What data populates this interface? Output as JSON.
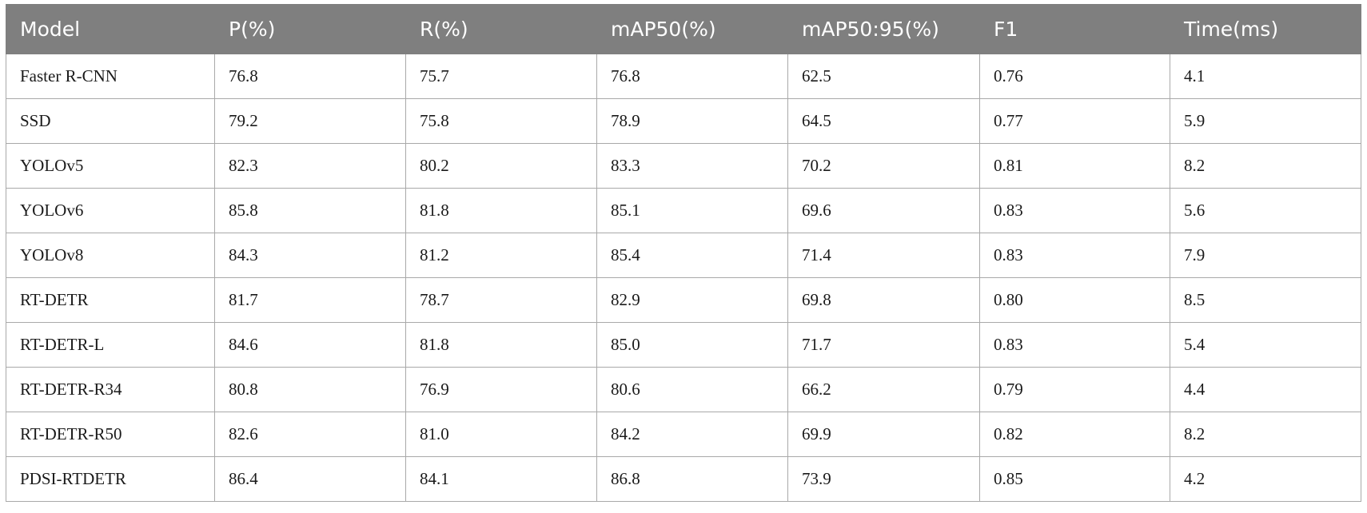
{
  "table": {
    "headers": [
      "Model",
      "P(%)",
      "R(%)",
      "mAP50(%)",
      "mAP50:95(%)",
      "F1",
      "Time(ms)"
    ],
    "rows": [
      [
        "Faster R-CNN",
        "76.8",
        "75.7",
        "76.8",
        "62.5",
        "0.76",
        "4.1"
      ],
      [
        "SSD",
        "79.2",
        "75.8",
        "78.9",
        "64.5",
        "0.77",
        "5.9"
      ],
      [
        "YOLOv5",
        "82.3",
        "80.2",
        "83.3",
        "70.2",
        "0.81",
        "8.2"
      ],
      [
        "YOLOv6",
        "85.8",
        "81.8",
        "85.1",
        "69.6",
        "0.83",
        "5.6"
      ],
      [
        "YOLOv8",
        "84.3",
        "81.2",
        "85.4",
        "71.4",
        "0.83",
        "7.9"
      ],
      [
        "RT-DETR",
        "81.7",
        "78.7",
        "82.9",
        "69.8",
        "0.80",
        "8.5"
      ],
      [
        "RT-DETR-L",
        "84.6",
        "81.8",
        "85.0",
        "71.7",
        "0.83",
        "5.4"
      ],
      [
        "RT-DETR-R34",
        "80.8",
        "76.9",
        "80.6",
        "66.2",
        "0.79",
        "4.4"
      ],
      [
        "RT-DETR-R50",
        "82.6",
        "81.0",
        "84.2",
        "69.9",
        "0.82",
        "8.2"
      ],
      [
        "PDSI-RTDETR",
        "86.4",
        "84.1",
        "86.8",
        "73.9",
        "0.85",
        "4.2"
      ]
    ]
  }
}
